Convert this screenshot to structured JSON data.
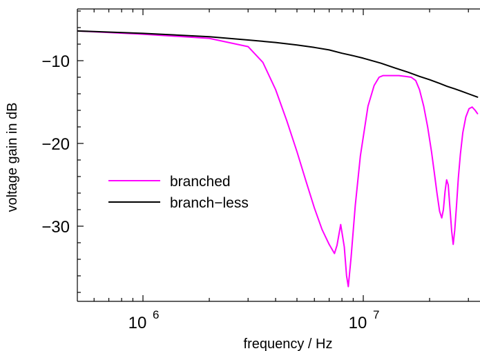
{
  "chart_data": {
    "type": "line",
    "xlabel": "frequency / Hz",
    "ylabel": "voltage gain in dB",
    "xscale": "log",
    "xlim": [
      500000,
      33000000
    ],
    "ylim": [
      -39,
      -3
    ],
    "x_ticks": [
      {
        "value": 1000000,
        "base": "10",
        "exp": "6"
      },
      {
        "value": 10000000,
        "base": "10",
        "exp": "7"
      }
    ],
    "y_ticks": [
      {
        "value": -10,
        "label": "−10"
      },
      {
        "value": -20,
        "label": "−20"
      },
      {
        "value": -30,
        "label": "−30"
      }
    ],
    "grid": false,
    "legend_position": "center-left",
    "series": [
      {
        "name": "branched",
        "color": "#ff00ff",
        "x": [
          500000,
          1000000,
          2000000,
          3000000,
          3500000,
          4000000,
          4500000,
          5000000,
          5500000,
          6000000,
          6500000,
          7000000,
          7400000,
          7600000,
          7900000,
          8200000,
          8400000,
          8550000,
          8800000,
          9200000,
          9700000,
          10500000,
          11200000,
          11800000,
          12300000,
          12800000,
          13500000,
          14500000,
          15500000,
          16500000,
          17300000,
          18000000,
          18800000,
          19600000,
          20400000,
          21000000,
          21600000,
          22200000,
          22700000,
          23100000,
          23500000,
          23900000,
          24300000,
          24700000,
          25200000,
          25600000,
          26000000,
          26500000,
          27000000,
          27600000,
          28300000,
          29200000,
          30200000,
          31200000,
          32200000,
          33000000
        ],
        "y": [
          -6.4,
          -6.8,
          -7.3,
          -8.3,
          -10.2,
          -13.5,
          -17.3,
          -21.0,
          -24.6,
          -27.8,
          -30.4,
          -32.2,
          -33.3,
          -32.3,
          -29.8,
          -32.5,
          -36.0,
          -37.3,
          -33.8,
          -27.5,
          -21.5,
          -15.5,
          -13.0,
          -12.0,
          -11.8,
          -11.8,
          -11.8,
          -11.8,
          -11.9,
          -12.0,
          -12.4,
          -13.5,
          -15.5,
          -18.0,
          -21.0,
          -23.5,
          -26.0,
          -28.2,
          -29.0,
          -28.0,
          -25.8,
          -24.4,
          -25.0,
          -27.6,
          -30.6,
          -32.2,
          -30.5,
          -27.5,
          -24.2,
          -21.3,
          -18.7,
          -16.8,
          -15.8,
          -15.6,
          -16.0,
          -16.4
        ]
      },
      {
        "name": "branch−less",
        "color": "#000000",
        "x": [
          500000,
          1000000,
          2000000,
          3000000,
          4000000,
          5000000,
          6000000,
          7000000,
          8000000,
          9000000,
          10000000,
          12000000,
          14000000,
          16000000,
          18000000,
          20000000,
          22000000,
          24000000,
          26000000,
          28000000,
          30000000,
          33000000
        ],
        "y": [
          -6.4,
          -6.7,
          -7.1,
          -7.5,
          -7.8,
          -8.1,
          -8.4,
          -8.7,
          -9.1,
          -9.4,
          -9.7,
          -10.3,
          -10.9,
          -11.4,
          -11.9,
          -12.3,
          -12.7,
          -13.1,
          -13.4,
          -13.7,
          -14.0,
          -14.4
        ]
      }
    ]
  }
}
